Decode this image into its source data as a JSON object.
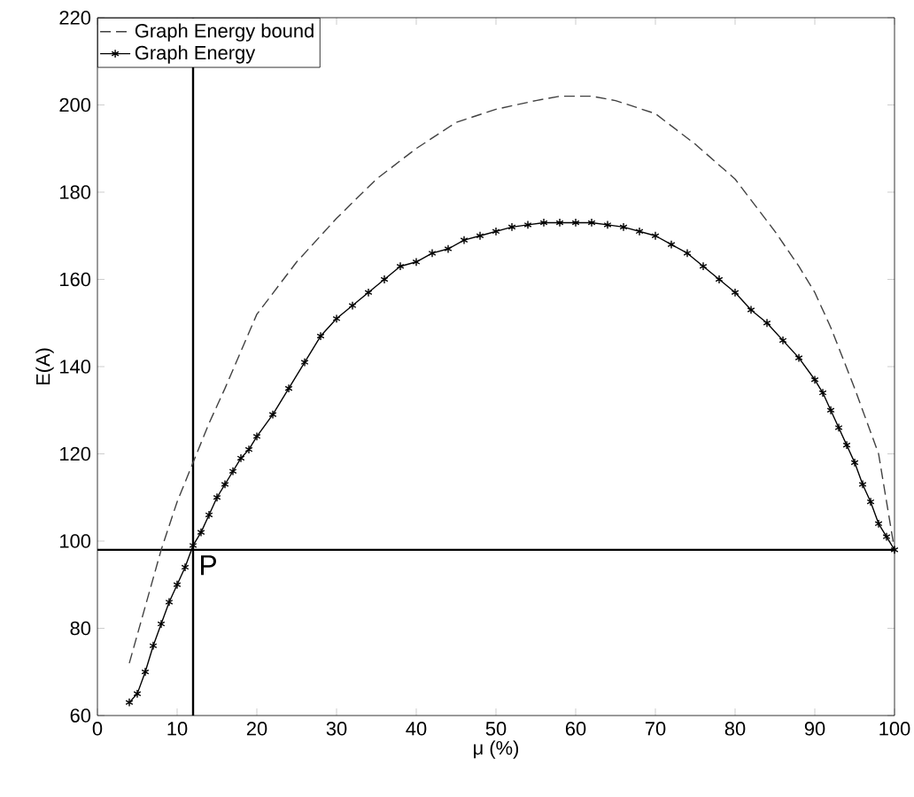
{
  "chart_data": {
    "type": "line",
    "xlabel": "μ (%)",
    "ylabel": "E(A)",
    "xlim": [
      0,
      100
    ],
    "ylim": [
      60,
      220
    ],
    "xticks": [
      0,
      10,
      20,
      30,
      40,
      50,
      60,
      70,
      80,
      90,
      100
    ],
    "yticks": [
      60,
      80,
      100,
      120,
      140,
      160,
      180,
      200,
      220
    ],
    "grid": false,
    "legend": "top left",
    "series": [
      {
        "name": "Graph Energy bound",
        "color": "#404040",
        "line_style": "dashed",
        "marker": "none",
        "x": [
          4,
          6,
          8,
          10,
          12,
          14,
          16,
          20,
          25,
          30,
          35,
          40,
          45,
          50,
          55,
          58,
          62,
          65,
          70,
          75,
          80,
          85,
          88,
          90,
          92,
          95,
          98,
          100
        ],
        "values": [
          72,
          85,
          98,
          109,
          118,
          127,
          135,
          152,
          164,
          174,
          183,
          190,
          196,
          199,
          201,
          202,
          202,
          201,
          198,
          191,
          183,
          171,
          163,
          157,
          149,
          135,
          120,
          98
        ]
      },
      {
        "name": "Graph Energy",
        "color": "#000000",
        "line_style": "solid",
        "marker": "cross",
        "x": [
          4,
          5,
          6,
          7,
          8,
          9,
          10,
          11,
          12,
          13,
          14,
          15,
          16,
          17,
          18,
          19,
          20,
          22,
          24,
          26,
          28,
          30,
          32,
          34,
          36,
          38,
          40,
          42,
          44,
          46,
          48,
          50,
          52,
          54,
          56,
          58,
          60,
          62,
          64,
          66,
          68,
          70,
          72,
          74,
          76,
          78,
          80,
          82,
          84,
          86,
          88,
          90,
          91,
          92,
          93,
          94,
          95,
          96,
          97,
          98,
          99,
          100
        ],
        "values": [
          63,
          65,
          70,
          76,
          81,
          86,
          90,
          94,
          99,
          102,
          106,
          110,
          113,
          116,
          119,
          121,
          124,
          129,
          135,
          141,
          147,
          151,
          154,
          157,
          160,
          163,
          164,
          166,
          167,
          169,
          170,
          171,
          172,
          172.5,
          173,
          173,
          173,
          173,
          172.5,
          172,
          171,
          170,
          168,
          166,
          163,
          160,
          157,
          153,
          150,
          146,
          142,
          137,
          134,
          130,
          126,
          122,
          118,
          113,
          109,
          104,
          101,
          98
        ]
      }
    ],
    "ref_lines": [
      {
        "axis": "x",
        "value": 12,
        "color": "#000000"
      },
      {
        "axis": "y",
        "value": 98,
        "color": "#000000"
      }
    ],
    "annotations": [
      {
        "text": "P",
        "x": 12,
        "y": 98
      }
    ]
  }
}
